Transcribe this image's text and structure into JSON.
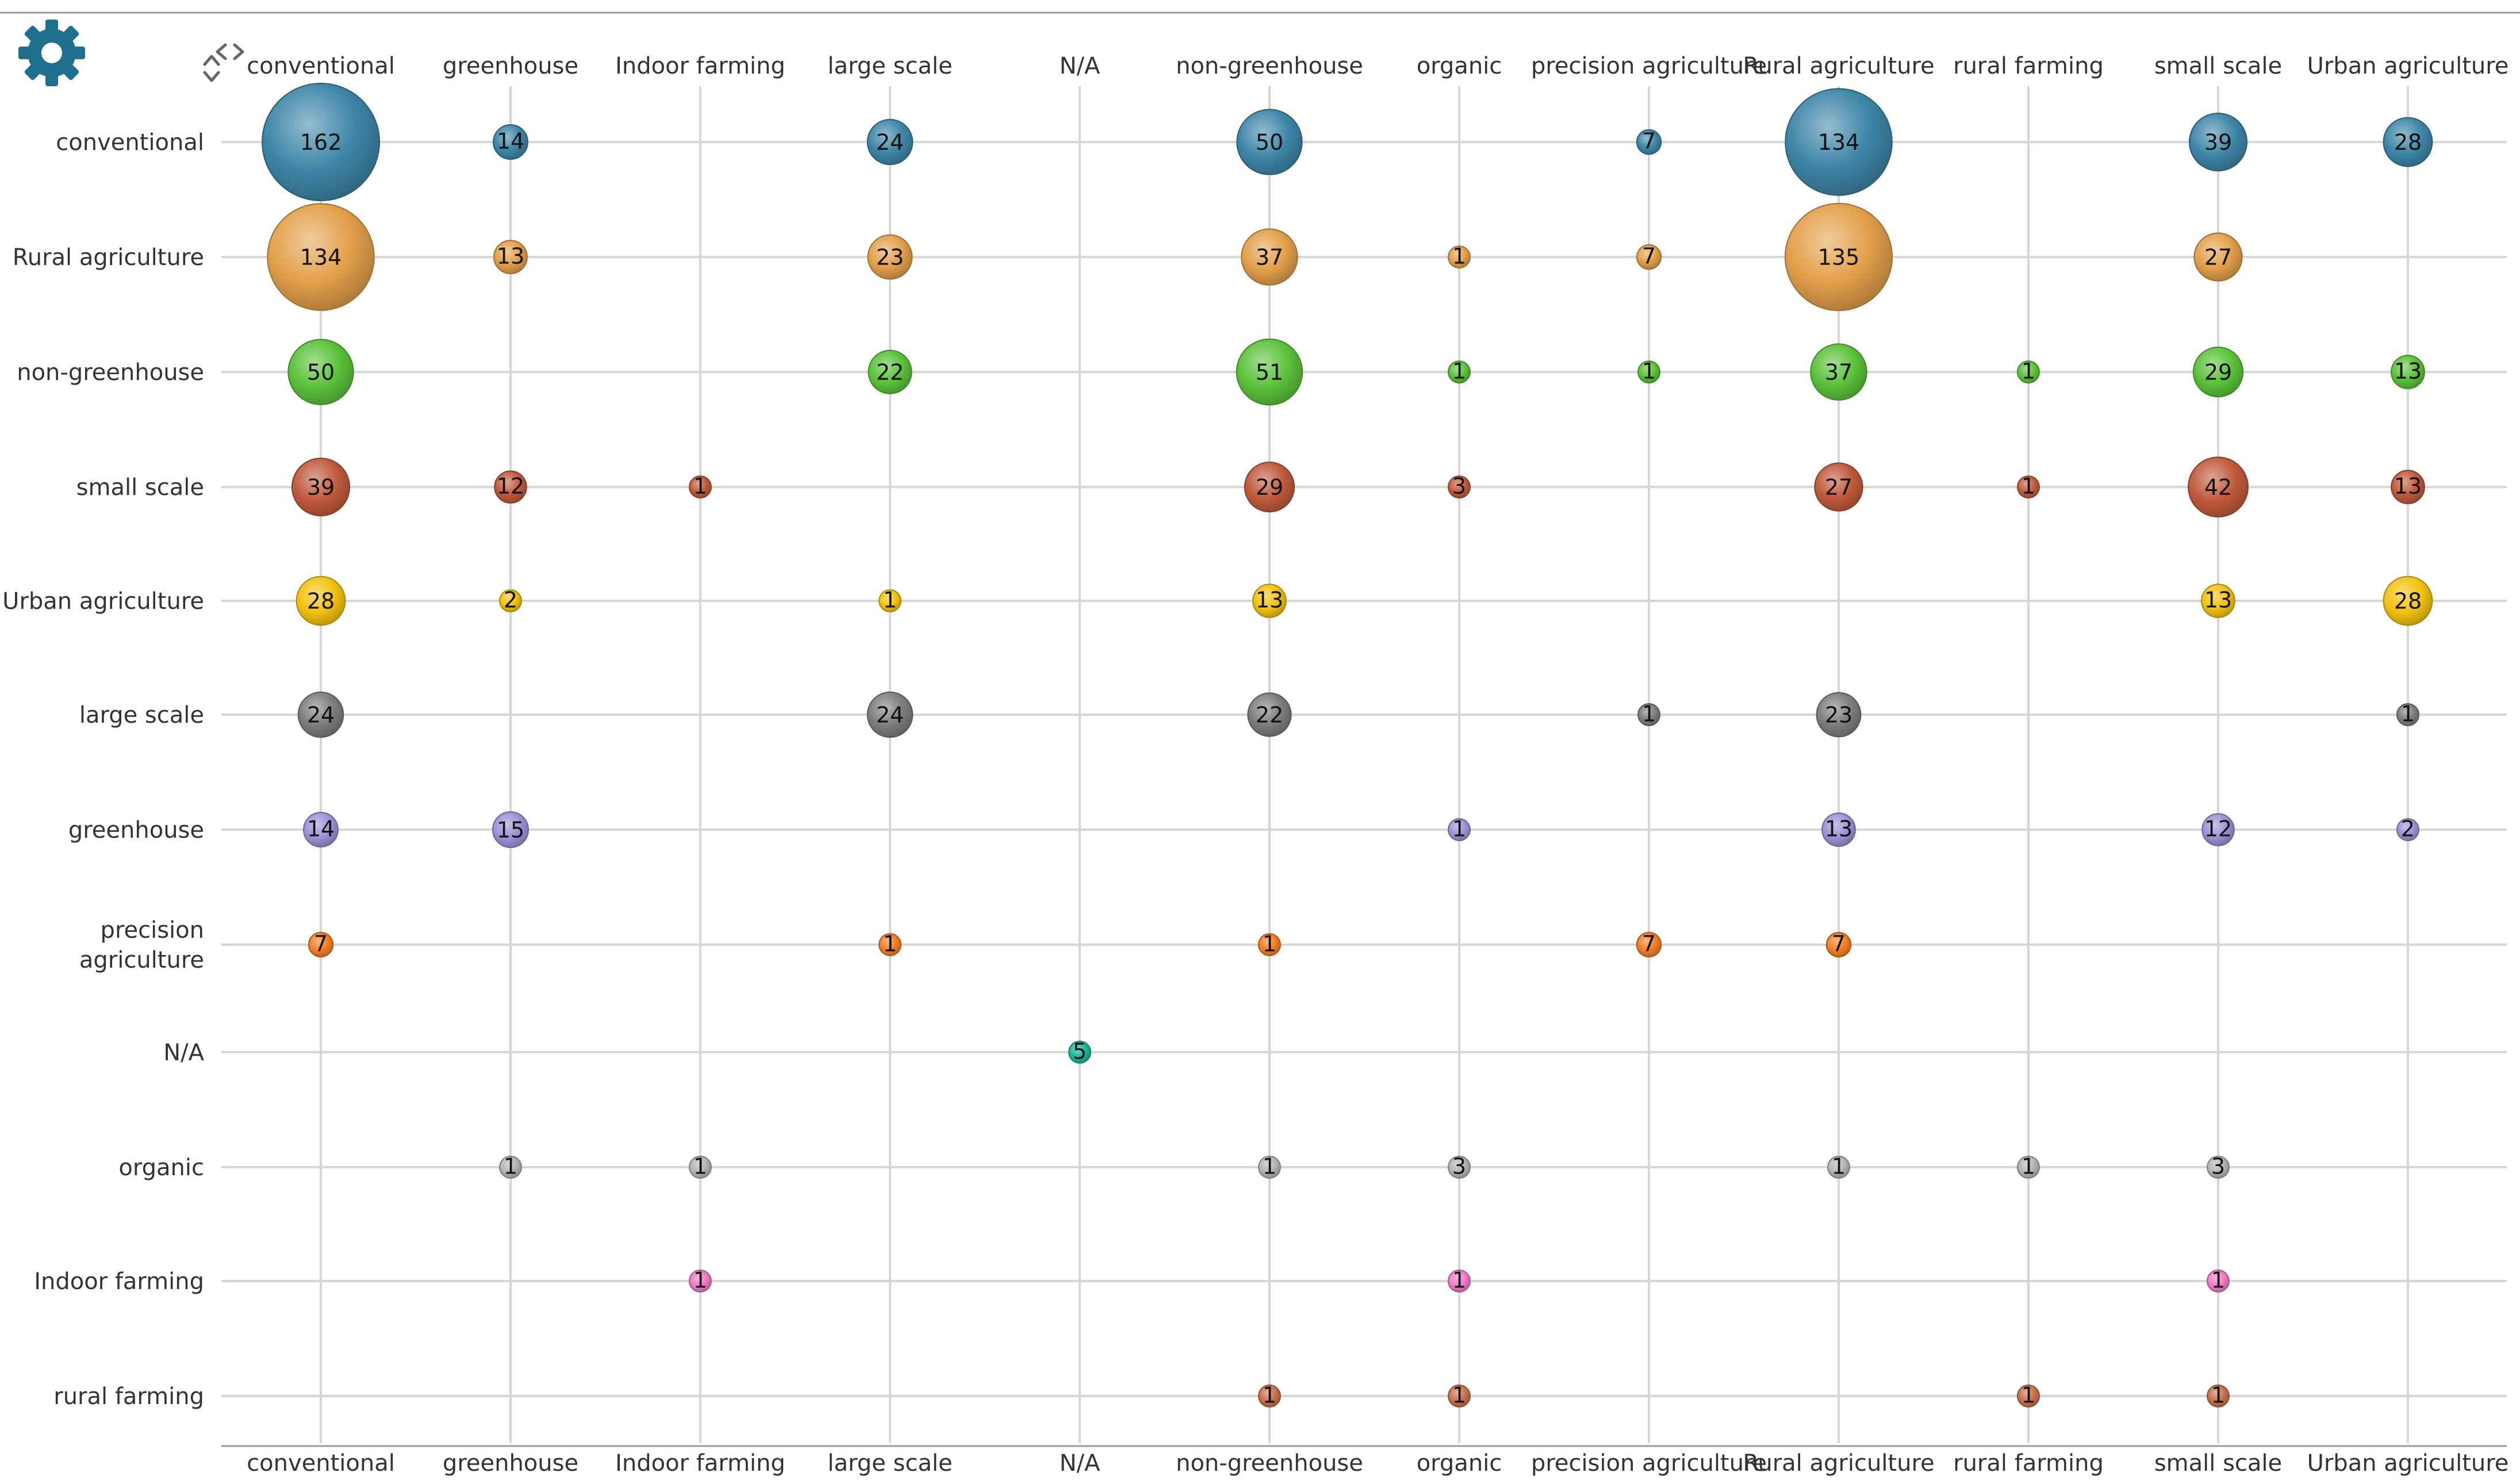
{
  "toolbar": {
    "settings_icon": "gear-icon",
    "swap_axes_icon": "swap-axes-icon"
  },
  "colors": {
    "conventional": "#3e86a8",
    "Rural agriculture": "#e3a04a",
    "non-greenhouse": "#5bc23a",
    "small scale": "#c05a3c",
    "Urban agriculture": "#f2c20e",
    "large scale": "#7d7d7d",
    "greenhouse": "#9a93d6",
    "precision agriculture": "#f37d25",
    "N/A": "#17b89a",
    "organic": "#b4b4b4",
    "Indoor farming": "#f07bc6",
    "rural farming": "#c8704d",
    "grid": "#d6d6d6",
    "icon": "#1f6f8f"
  },
  "chart_data": {
    "type": "bubble-matrix",
    "x_categories": [
      "conventional",
      "greenhouse",
      "Indoor farming",
      "large scale",
      "N/A",
      "non-greenhouse",
      "organic",
      "precision agriculture",
      "Rural agriculture",
      "rural farming",
      "small scale",
      "Urban agriculture"
    ],
    "y_categories": [
      "conventional",
      "Rural agriculture",
      "non-greenhouse",
      "small scale",
      "Urban agriculture",
      "large scale",
      "greenhouse",
      "precision agriculture",
      "N/A",
      "organic",
      "Indoor farming",
      "rural farming"
    ],
    "y_label_lines": [
      [
        "conventional"
      ],
      [
        "Rural agriculture"
      ],
      [
        "non-greenhouse"
      ],
      [
        "small scale"
      ],
      [
        "Urban agriculture"
      ],
      [
        "large scale"
      ],
      [
        "greenhouse"
      ],
      [
        "precision",
        "agriculture"
      ],
      [
        "N/A"
      ],
      [
        "organic"
      ],
      [
        "Indoor farming"
      ],
      [
        "rural farming"
      ]
    ],
    "max_value": 162,
    "points": [
      {
        "row": "conventional",
        "col": "conventional",
        "value": 162
      },
      {
        "row": "conventional",
        "col": "greenhouse",
        "value": 14
      },
      {
        "row": "conventional",
        "col": "large scale",
        "value": 24
      },
      {
        "row": "conventional",
        "col": "non-greenhouse",
        "value": 50
      },
      {
        "row": "conventional",
        "col": "precision agriculture",
        "value": 7
      },
      {
        "row": "conventional",
        "col": "Rural agriculture",
        "value": 134
      },
      {
        "row": "conventional",
        "col": "small scale",
        "value": 39
      },
      {
        "row": "conventional",
        "col": "Urban agriculture",
        "value": 28
      },
      {
        "row": "Rural agriculture",
        "col": "conventional",
        "value": 134
      },
      {
        "row": "Rural agriculture",
        "col": "greenhouse",
        "value": 13
      },
      {
        "row": "Rural agriculture",
        "col": "large scale",
        "value": 23
      },
      {
        "row": "Rural agriculture",
        "col": "non-greenhouse",
        "value": 37
      },
      {
        "row": "Rural agriculture",
        "col": "organic",
        "value": 1
      },
      {
        "row": "Rural agriculture",
        "col": "precision agriculture",
        "value": 7
      },
      {
        "row": "Rural agriculture",
        "col": "Rural agriculture",
        "value": 135
      },
      {
        "row": "Rural agriculture",
        "col": "small scale",
        "value": 27
      },
      {
        "row": "non-greenhouse",
        "col": "conventional",
        "value": 50
      },
      {
        "row": "non-greenhouse",
        "col": "large scale",
        "value": 22
      },
      {
        "row": "non-greenhouse",
        "col": "non-greenhouse",
        "value": 51
      },
      {
        "row": "non-greenhouse",
        "col": "organic",
        "value": 1
      },
      {
        "row": "non-greenhouse",
        "col": "precision agriculture",
        "value": 1
      },
      {
        "row": "non-greenhouse",
        "col": "Rural agriculture",
        "value": 37
      },
      {
        "row": "non-greenhouse",
        "col": "rural farming",
        "value": 1
      },
      {
        "row": "non-greenhouse",
        "col": "small scale",
        "value": 29
      },
      {
        "row": "non-greenhouse",
        "col": "Urban agriculture",
        "value": 13
      },
      {
        "row": "small scale",
        "col": "conventional",
        "value": 39
      },
      {
        "row": "small scale",
        "col": "greenhouse",
        "value": 12
      },
      {
        "row": "small scale",
        "col": "Indoor farming",
        "value": 1
      },
      {
        "row": "small scale",
        "col": "non-greenhouse",
        "value": 29
      },
      {
        "row": "small scale",
        "col": "organic",
        "value": 3
      },
      {
        "row": "small scale",
        "col": "Rural agriculture",
        "value": 27
      },
      {
        "row": "small scale",
        "col": "rural farming",
        "value": 1
      },
      {
        "row": "small scale",
        "col": "small scale",
        "value": 42
      },
      {
        "row": "small scale",
        "col": "Urban agriculture",
        "value": 13
      },
      {
        "row": "Urban agriculture",
        "col": "conventional",
        "value": 28
      },
      {
        "row": "Urban agriculture",
        "col": "greenhouse",
        "value": 2
      },
      {
        "row": "Urban agriculture",
        "col": "large scale",
        "value": 1
      },
      {
        "row": "Urban agriculture",
        "col": "non-greenhouse",
        "value": 13
      },
      {
        "row": "Urban agriculture",
        "col": "small scale",
        "value": 13
      },
      {
        "row": "Urban agriculture",
        "col": "Urban agriculture",
        "value": 28
      },
      {
        "row": "large scale",
        "col": "conventional",
        "value": 24
      },
      {
        "row": "large scale",
        "col": "large scale",
        "value": 24
      },
      {
        "row": "large scale",
        "col": "non-greenhouse",
        "value": 22
      },
      {
        "row": "large scale",
        "col": "precision agriculture",
        "value": 1
      },
      {
        "row": "large scale",
        "col": "Rural agriculture",
        "value": 23
      },
      {
        "row": "large scale",
        "col": "Urban agriculture",
        "value": 1
      },
      {
        "row": "greenhouse",
        "col": "conventional",
        "value": 14
      },
      {
        "row": "greenhouse",
        "col": "greenhouse",
        "value": 15
      },
      {
        "row": "greenhouse",
        "col": "organic",
        "value": 1
      },
      {
        "row": "greenhouse",
        "col": "Rural agriculture",
        "value": 13
      },
      {
        "row": "greenhouse",
        "col": "small scale",
        "value": 12
      },
      {
        "row": "greenhouse",
        "col": "Urban agriculture",
        "value": 2
      },
      {
        "row": "precision agriculture",
        "col": "conventional",
        "value": 7
      },
      {
        "row": "precision agriculture",
        "col": "large scale",
        "value": 1
      },
      {
        "row": "precision agriculture",
        "col": "non-greenhouse",
        "value": 1
      },
      {
        "row": "precision agriculture",
        "col": "precision agriculture",
        "value": 7
      },
      {
        "row": "precision agriculture",
        "col": "Rural agriculture",
        "value": 7
      },
      {
        "row": "N/A",
        "col": "N/A",
        "value": 5
      },
      {
        "row": "organic",
        "col": "greenhouse",
        "value": 1
      },
      {
        "row": "organic",
        "col": "Indoor farming",
        "value": 1
      },
      {
        "row": "organic",
        "col": "non-greenhouse",
        "value": 1
      },
      {
        "row": "organic",
        "col": "organic",
        "value": 3
      },
      {
        "row": "organic",
        "col": "Rural agriculture",
        "value": 1
      },
      {
        "row": "organic",
        "col": "rural farming",
        "value": 1
      },
      {
        "row": "organic",
        "col": "small scale",
        "value": 3
      },
      {
        "row": "Indoor farming",
        "col": "Indoor farming",
        "value": 1
      },
      {
        "row": "Indoor farming",
        "col": "organic",
        "value": 1
      },
      {
        "row": "Indoor farming",
        "col": "small scale",
        "value": 1
      },
      {
        "row": "rural farming",
        "col": "non-greenhouse",
        "value": 1
      },
      {
        "row": "rural farming",
        "col": "organic",
        "value": 1
      },
      {
        "row": "rural farming",
        "col": "rural farming",
        "value": 1
      },
      {
        "row": "rural farming",
        "col": "small scale",
        "value": 1
      }
    ]
  }
}
